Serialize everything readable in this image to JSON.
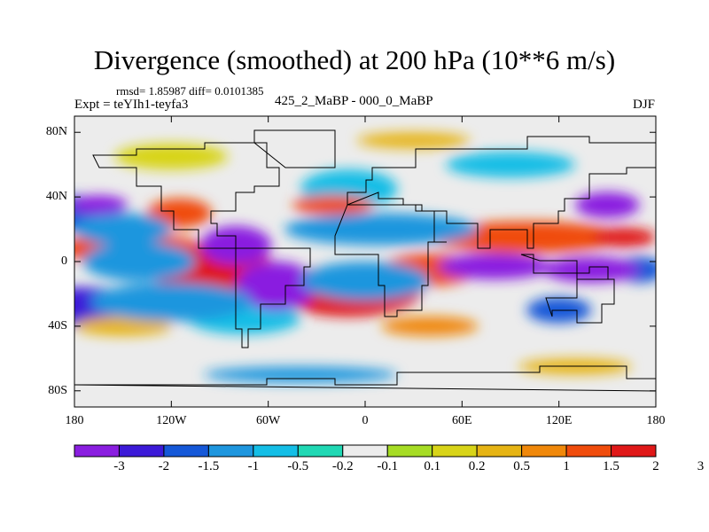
{
  "title": "Divergence (smoothed) at 200 hPa (10**6 m/s)",
  "stats": "rmsd= 1.85987 diff= 0.0101385",
  "expt": "Expt = teYIh1-teyfa3",
  "comparison": "425_2_MaBP - 000_0_MaBP",
  "season": "DJF",
  "map": {
    "y_ticks": [
      {
        "label": "80N",
        "lat": 80
      },
      {
        "label": "40N",
        "lat": 40
      },
      {
        "label": "0",
        "lat": 0
      },
      {
        "label": "40S",
        "lat": -40
      },
      {
        "label": "80S",
        "lat": -80
      }
    ],
    "x_ticks": [
      {
        "label": "180",
        "lon": -180
      },
      {
        "label": "120W",
        "lon": -120
      },
      {
        "label": "60W",
        "lon": -60
      },
      {
        "label": "0",
        "lon": 0
      },
      {
        "label": "60E",
        "lon": 60
      },
      {
        "label": "120E",
        "lon": 120
      },
      {
        "label": "180",
        "lon": 180
      }
    ],
    "lat_range": [
      -90,
      90
    ],
    "lon_range": [
      -180,
      180
    ]
  },
  "colorbar": {
    "labels": [
      "-3",
      "-2",
      "-1.5",
      "-1",
      "-0.5",
      "-0.2",
      "-0.1",
      "0.1",
      "0.2",
      "0.5",
      "1",
      "1.5",
      "2",
      "3"
    ],
    "colors": [
      "#8a1ee0",
      "#3c1ad8",
      "#1558d8",
      "#1e96de",
      "#14bee6",
      "#20d8b4",
      "#ececec",
      "#a6dc24",
      "#d8d418",
      "#e6b414",
      "#f0880a",
      "#f04c0c",
      "#e01818"
    ]
  },
  "fields": [
    {
      "name": "red-band-north-pacific",
      "level": 3,
      "lon": -150,
      "lat": 20,
      "rx": 30,
      "ry": 10
    },
    {
      "name": "purple-north-pacific",
      "level": 0,
      "lon": -165,
      "lat": 35,
      "rx": 18,
      "ry": 6
    },
    {
      "name": "red-east-pacific",
      "level": 3,
      "lon": -140,
      "lat": 0,
      "rx": 35,
      "ry": 12
    },
    {
      "name": "purple-central-america",
      "level": 0,
      "lon": -80,
      "lat": 10,
      "rx": 22,
      "ry": 12
    },
    {
      "name": "red-atlantic-band",
      "level": 3,
      "lon": 10,
      "lat": 20,
      "rx": 60,
      "ry": 10
    },
    {
      "name": "purple-south-america",
      "level": 0,
      "lon": -55,
      "lat": -15,
      "rx": 25,
      "ry": 15
    },
    {
      "name": "red-south-atlantic",
      "level": 3,
      "lon": 0,
      "lat": -12,
      "rx": 40,
      "ry": 12
    },
    {
      "name": "purple-indian-ocean",
      "level": 0,
      "lon": 80,
      "lat": -3,
      "rx": 35,
      "ry": 8
    },
    {
      "name": "purple-west-pacific",
      "level": 0,
      "lon": 140,
      "lat": -5,
      "rx": 30,
      "ry": 8
    },
    {
      "name": "red-south-pacific",
      "level": 3,
      "lon": -120,
      "lat": -25,
      "rx": 50,
      "ry": 12
    }
  ]
}
